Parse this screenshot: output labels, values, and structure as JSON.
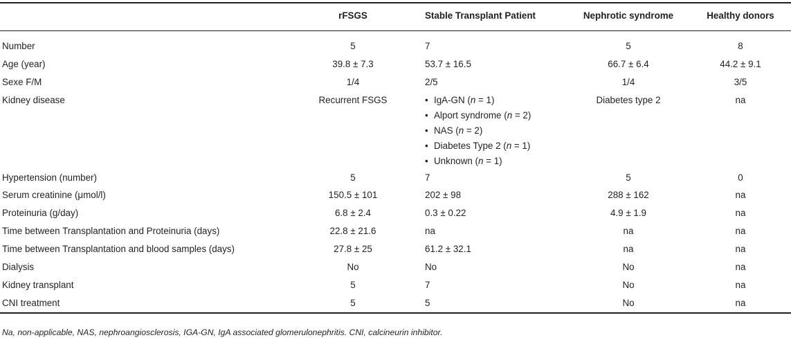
{
  "table": {
    "headers": [
      "",
      "rFSGS",
      "Stable Transplant Patient",
      "Nephrotic syndrome",
      "Healthy donors"
    ],
    "rows": [
      {
        "label": "Number",
        "values": [
          "5",
          "7",
          "5",
          "8"
        ]
      },
      {
        "label": "Age (year)",
        "values": [
          "39.8 ± 7.3",
          "53.7 ± 16.5",
          "66.7 ± 6.4",
          "44.2 ± 9.1"
        ]
      },
      {
        "label": "Sexe F/M",
        "values": [
          "1/4",
          "2/5",
          "1/4",
          "3/5"
        ]
      },
      {
        "label": "Kidney disease",
        "values": [
          "Recurrent FSGS",
          "",
          "Diabetes type 2",
          "na"
        ],
        "bullets": [
          {
            "pre": "IgA-GN (",
            "n": "n",
            "post": " = 1)"
          },
          {
            "pre": "Alport syndrome (",
            "n": "n",
            "post": " = 2)"
          },
          {
            "pre": "NAS (",
            "n": "n",
            "post": " = 2)"
          },
          {
            "pre": "Diabetes Type 2 (",
            "n": "n",
            "post": " = 1)"
          },
          {
            "pre": "Unknown (",
            "n": "n",
            "post": " = 1)"
          }
        ]
      },
      {
        "label": "Hypertension (number)",
        "values": [
          "5",
          "7",
          "5",
          "0"
        ]
      },
      {
        "label": "Serum creatinine (μmol/l)",
        "values": [
          "150.5 ± 101",
          "202 ± 98",
          "288 ± 162",
          "na"
        ]
      },
      {
        "label": "Proteinuria (g/day)",
        "values": [
          "6.8 ± 2.4",
          "0.3 ± 0.22",
          "4.9 ± 1.9",
          "na"
        ]
      },
      {
        "label": "Time between Transplantation and Proteinuria (days)",
        "values": [
          "22.8 ± 21.6",
          "na",
          "na",
          "na"
        ]
      },
      {
        "label": "Time between Transplantation and blood samples (days)",
        "values": [
          "27.8 ± 25",
          "61.2 ± 32.1",
          "na",
          "na"
        ]
      },
      {
        "label": "Dialysis",
        "values": [
          "No",
          "No",
          "No",
          "na"
        ]
      },
      {
        "label": "Kidney transplant",
        "values": [
          "5",
          "7",
          "No",
          "na"
        ]
      },
      {
        "label": "CNI treatment",
        "values": [
          "5",
          "5",
          "No",
          "na"
        ]
      }
    ]
  },
  "footnote": "Na, non-applicable, NAS, nephroangiosclerosis, IGA-GN, IgA associated glomerulonephritis. CNI, calcineurin inhibitor."
}
